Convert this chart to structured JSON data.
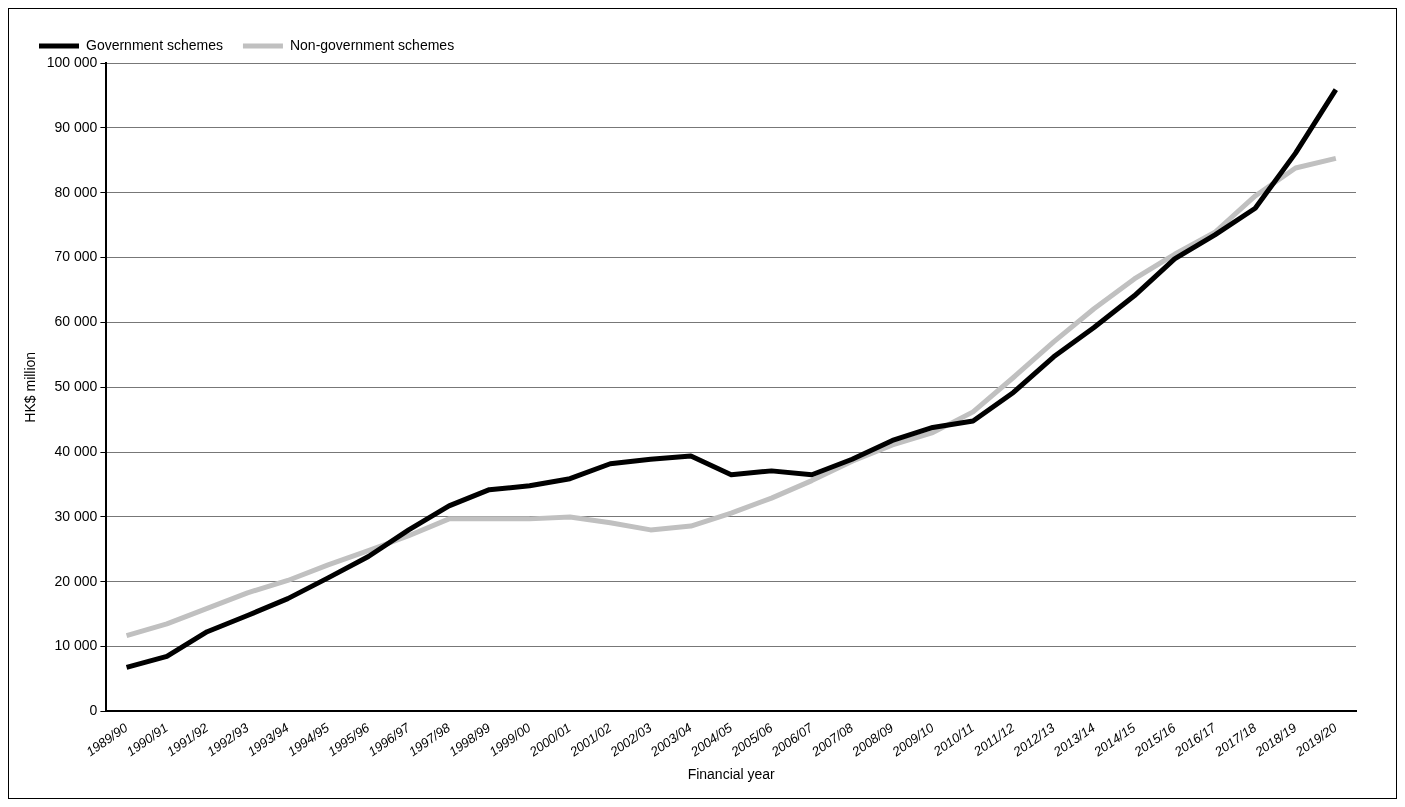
{
  "chart_data": {
    "type": "line",
    "xlabel": "Financial year",
    "ylabel": "HK$ million",
    "categories": [
      "1989/90",
      "1990/91",
      "1991/92",
      "1992/93",
      "1993/94",
      "1994/95",
      "1995/96",
      "1996/97",
      "1997/98",
      "1998/99",
      "1999/00",
      "2000/01",
      "2001/02",
      "2002/03",
      "2003/04",
      "2004/05",
      "2005/06",
      "2006/07",
      "2007/08",
      "2008/09",
      "2009/10",
      "2010/11",
      "2011/12",
      "2012/13",
      "2013/14",
      "2014/15",
      "2015/16",
      "2016/17",
      "2017/18",
      "2018/19",
      "2019/20"
    ],
    "series": [
      {
        "name": "Government schemes",
        "color": "#000000",
        "values": [
          6800,
          8500,
          12300,
          14800,
          17400,
          20600,
          23900,
          28000,
          31700,
          34200,
          34800,
          35900,
          38200,
          38900,
          39400,
          36500,
          37100,
          36500,
          38900,
          41800,
          43800,
          44800,
          49200,
          54700,
          59200,
          64100,
          69800,
          73500,
          77600,
          86100,
          95900
        ]
      },
      {
        "name": "Non-government schemes",
        "color": "#c0c0c0",
        "values": [
          11700,
          13500,
          15900,
          18300,
          20200,
          22600,
          24800,
          27100,
          29700,
          29700,
          29700,
          30000,
          29100,
          28000,
          28600,
          30600,
          32900,
          35600,
          38600,
          41100,
          43000,
          46200,
          51500,
          57000,
          62100,
          66700,
          70500,
          73900,
          79500,
          83800,
          85300
        ]
      }
    ],
    "ylim": [
      0,
      100000
    ],
    "yticks": [
      {
        "value": 0,
        "label": "0"
      },
      {
        "value": 10000,
        "label": "10 000"
      },
      {
        "value": 20000,
        "label": "20 000"
      },
      {
        "value": 30000,
        "label": "30 000"
      },
      {
        "value": 40000,
        "label": "40 000"
      },
      {
        "value": 50000,
        "label": "50 000"
      },
      {
        "value": 60000,
        "label": "60 000"
      },
      {
        "value": 70000,
        "label": "70 000"
      },
      {
        "value": 80000,
        "label": "80 000"
      },
      {
        "value": 90000,
        "label": "90 000"
      },
      {
        "value": 100000,
        "label": "100 000"
      }
    ],
    "grid": "y",
    "legend": "top left",
    "marker": "none",
    "line_style": "solid"
  }
}
